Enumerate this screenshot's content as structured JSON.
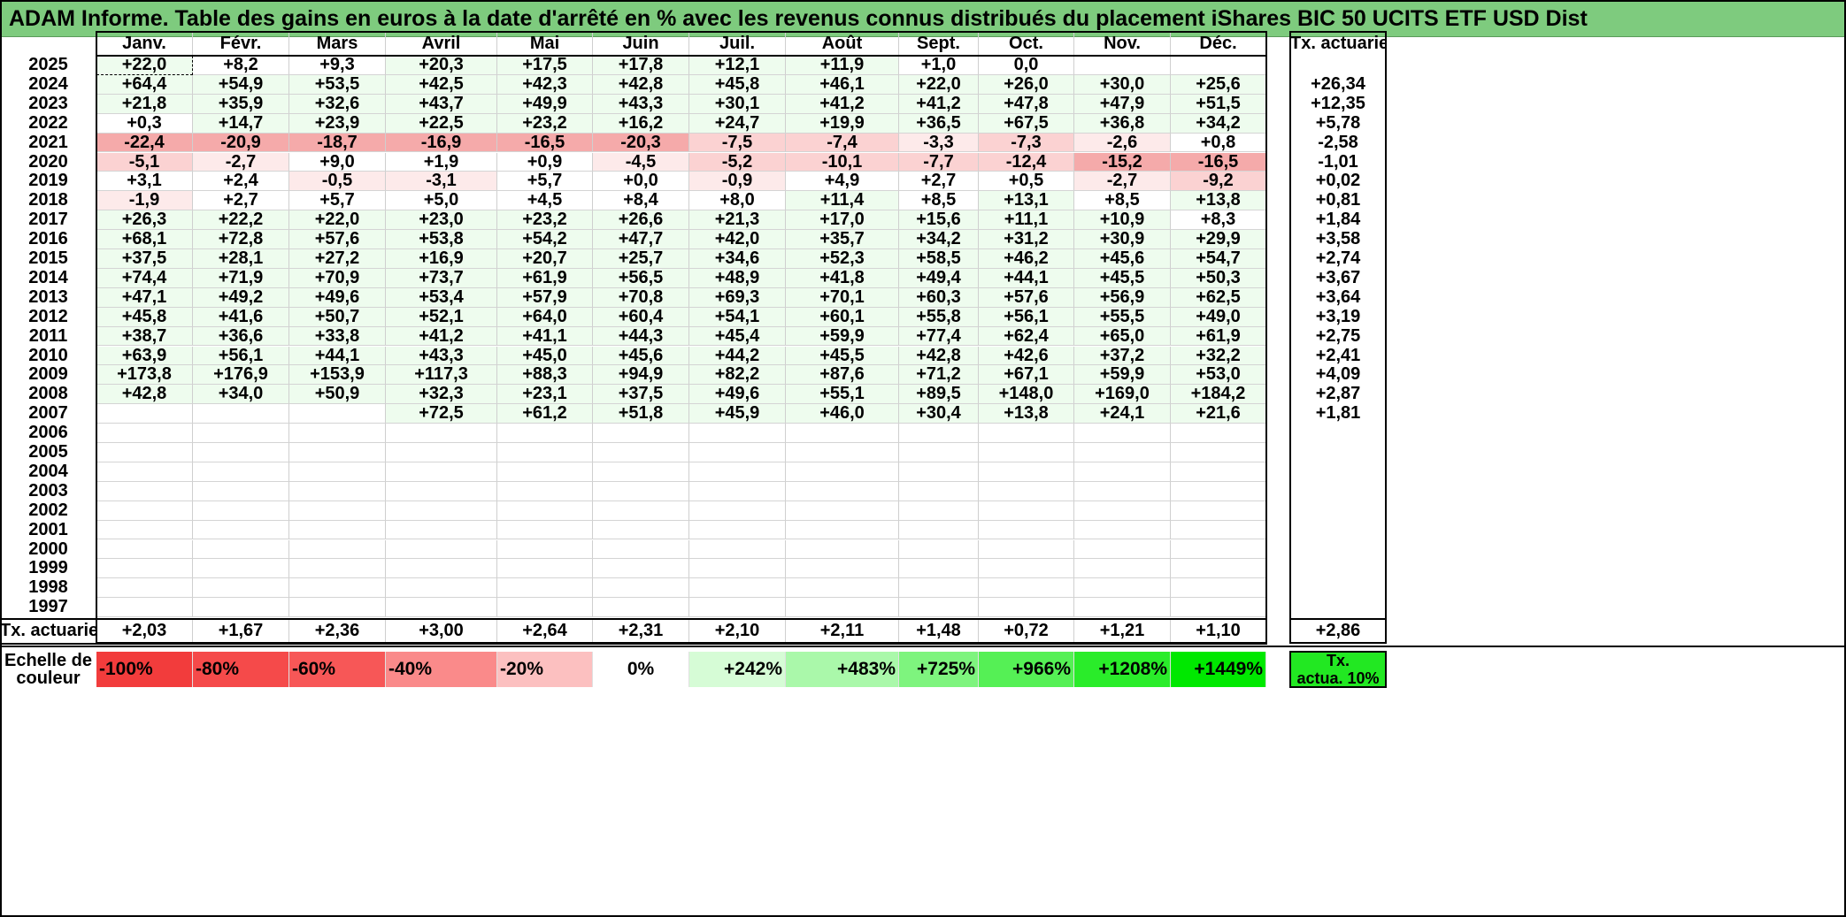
{
  "title": "ADAM Informe. Table des gains en euros à la date d'arrêté en % avec les revenus connus distribués du placement iShares BIC 50 UCITS ETF USD Dist",
  "months": [
    "Janv.",
    "Févr.",
    "Mars",
    "Avril",
    "Mai",
    "Juin",
    "Juil.",
    "Août",
    "Sept.",
    "Oct.",
    "Nov.",
    "Déc."
  ],
  "annual_header": "Tx. actuariel",
  "rows": [
    {
      "year": "2025",
      "values": [
        "+22,0",
        "+8,2",
        "+9,3",
        "+20,3",
        "+17,5",
        "+17,8",
        "+12,1",
        "+11,9",
        "+1,0",
        "0,0",
        "",
        ""
      ],
      "rate": ""
    },
    {
      "year": "2024",
      "values": [
        "+64,4",
        "+54,9",
        "+53,5",
        "+42,5",
        "+42,3",
        "+42,8",
        "+45,8",
        "+46,1",
        "+22,0",
        "+26,0",
        "+30,0",
        "+25,6"
      ],
      "rate": "+26,34"
    },
    {
      "year": "2023",
      "values": [
        "+21,8",
        "+35,9",
        "+32,6",
        "+43,7",
        "+49,9",
        "+43,3",
        "+30,1",
        "+41,2",
        "+41,2",
        "+47,8",
        "+47,9",
        "+51,5"
      ],
      "rate": "+12,35"
    },
    {
      "year": "2022",
      "values": [
        "+0,3",
        "+14,7",
        "+23,9",
        "+22,5",
        "+23,2",
        "+16,2",
        "+24,7",
        "+19,9",
        "+36,5",
        "+67,5",
        "+36,8",
        "+34,2"
      ],
      "rate": "+5,78"
    },
    {
      "year": "2021",
      "values": [
        "-22,4",
        "-20,9",
        "-18,7",
        "-16,9",
        "-16,5",
        "-20,3",
        "-7,5",
        "-7,4",
        "-3,3",
        "-7,3",
        "-2,6",
        "+0,8"
      ],
      "rate": "-2,58"
    },
    {
      "year": "2020",
      "values": [
        "-5,1",
        "-2,7",
        "+9,0",
        "+1,9",
        "+0,9",
        "-4,5",
        "-5,2",
        "-10,1",
        "-7,7",
        "-12,4",
        "-15,2",
        "-16,5"
      ],
      "rate": "-1,01"
    },
    {
      "year": "2019",
      "values": [
        "+3,1",
        "+2,4",
        "-0,5",
        "-3,1",
        "+5,7",
        "+0,0",
        "-0,9",
        "+4,9",
        "+2,7",
        "+0,5",
        "-2,7",
        "-9,2"
      ],
      "rate": "+0,02"
    },
    {
      "year": "2018",
      "values": [
        "-1,9",
        "+2,7",
        "+5,7",
        "+5,0",
        "+4,5",
        "+8,4",
        "+8,0",
        "+11,4",
        "+8,5",
        "+13,1",
        "+8,5",
        "+13,8"
      ],
      "rate": "+0,81"
    },
    {
      "year": "2017",
      "values": [
        "+26,3",
        "+22,2",
        "+22,0",
        "+23,0",
        "+23,2",
        "+26,6",
        "+21,3",
        "+17,0",
        "+15,6",
        "+11,1",
        "+10,9",
        "+8,3"
      ],
      "rate": "+1,84"
    },
    {
      "year": "2016",
      "values": [
        "+68,1",
        "+72,8",
        "+57,6",
        "+53,8",
        "+54,2",
        "+47,7",
        "+42,0",
        "+35,7",
        "+34,2",
        "+31,2",
        "+30,9",
        "+29,9"
      ],
      "rate": "+3,58"
    },
    {
      "year": "2015",
      "values": [
        "+37,5",
        "+28,1",
        "+27,2",
        "+16,9",
        "+20,7",
        "+25,7",
        "+34,6",
        "+52,3",
        "+58,5",
        "+46,2",
        "+45,6",
        "+54,7"
      ],
      "rate": "+2,74"
    },
    {
      "year": "2014",
      "values": [
        "+74,4",
        "+71,9",
        "+70,9",
        "+73,7",
        "+61,9",
        "+56,5",
        "+48,9",
        "+41,8",
        "+49,4",
        "+44,1",
        "+45,5",
        "+50,3"
      ],
      "rate": "+3,67"
    },
    {
      "year": "2013",
      "values": [
        "+47,1",
        "+49,2",
        "+49,6",
        "+53,4",
        "+57,9",
        "+70,8",
        "+69,3",
        "+70,1",
        "+60,3",
        "+57,6",
        "+56,9",
        "+62,5"
      ],
      "rate": "+3,64"
    },
    {
      "year": "2012",
      "values": [
        "+45,8",
        "+41,6",
        "+50,7",
        "+52,1",
        "+64,0",
        "+60,4",
        "+54,1",
        "+60,1",
        "+55,8",
        "+56,1",
        "+55,5",
        "+49,0"
      ],
      "rate": "+3,19"
    },
    {
      "year": "2011",
      "values": [
        "+38,7",
        "+36,6",
        "+33,8",
        "+41,2",
        "+41,1",
        "+44,3",
        "+45,4",
        "+59,9",
        "+77,4",
        "+62,4",
        "+65,0",
        "+61,9"
      ],
      "rate": "+2,75"
    },
    {
      "year": "2010",
      "values": [
        "+63,9",
        "+56,1",
        "+44,1",
        "+43,3",
        "+45,0",
        "+45,6",
        "+44,2",
        "+45,5",
        "+42,8",
        "+42,6",
        "+37,2",
        "+32,2"
      ],
      "rate": "+2,41"
    },
    {
      "year": "2009",
      "values": [
        "+173,8",
        "+176,9",
        "+153,9",
        "+117,3",
        "+88,3",
        "+94,9",
        "+82,2",
        "+87,6",
        "+71,2",
        "+67,1",
        "+59,9",
        "+53,0"
      ],
      "rate": "+4,09"
    },
    {
      "year": "2008",
      "values": [
        "+42,8",
        "+34,0",
        "+50,9",
        "+32,3",
        "+23,1",
        "+37,5",
        "+49,6",
        "+55,1",
        "+89,5",
        "+148,0",
        "+169,0",
        "+184,2"
      ],
      "rate": "+2,87"
    },
    {
      "year": "2007",
      "values": [
        "",
        "",
        "",
        "+72,5",
        "+61,2",
        "+51,8",
        "+45,9",
        "+46,0",
        "+30,4",
        "+13,8",
        "+24,1",
        "+21,6"
      ],
      "rate": "+1,81"
    },
    {
      "year": "2006",
      "values": [
        "",
        "",
        "",
        "",
        "",
        "",
        "",
        "",
        "",
        "",
        "",
        ""
      ],
      "rate": ""
    },
    {
      "year": "2005",
      "values": [
        "",
        "",
        "",
        "",
        "",
        "",
        "",
        "",
        "",
        "",
        "",
        ""
      ],
      "rate": ""
    },
    {
      "year": "2004",
      "values": [
        "",
        "",
        "",
        "",
        "",
        "",
        "",
        "",
        "",
        "",
        "",
        ""
      ],
      "rate": ""
    },
    {
      "year": "2003",
      "values": [
        "",
        "",
        "",
        "",
        "",
        "",
        "",
        "",
        "",
        "",
        "",
        ""
      ],
      "rate": ""
    },
    {
      "year": "2002",
      "values": [
        "",
        "",
        "",
        "",
        "",
        "",
        "",
        "",
        "",
        "",
        "",
        ""
      ],
      "rate": ""
    },
    {
      "year": "2001",
      "values": [
        "",
        "",
        "",
        "",
        "",
        "",
        "",
        "",
        "",
        "",
        "",
        ""
      ],
      "rate": ""
    },
    {
      "year": "2000",
      "values": [
        "",
        "",
        "",
        "",
        "",
        "",
        "",
        "",
        "",
        "",
        "",
        ""
      ],
      "rate": ""
    },
    {
      "year": "1999",
      "values": [
        "",
        "",
        "",
        "",
        "",
        "",
        "",
        "",
        "",
        "",
        "",
        ""
      ],
      "rate": ""
    },
    {
      "year": "1998",
      "values": [
        "",
        "",
        "",
        "",
        "",
        "",
        "",
        "",
        "",
        "",
        "",
        ""
      ],
      "rate": ""
    },
    {
      "year": "1997",
      "values": [
        "",
        "",
        "",
        "",
        "",
        "",
        "",
        "",
        "",
        "",
        "",
        ""
      ],
      "rate": ""
    }
  ],
  "footer": {
    "label": "Tx. actuariel",
    "values": [
      "+2,03",
      "+1,67",
      "+2,36",
      "+3,00",
      "+2,64",
      "+2,31",
      "+2,10",
      "+2,11",
      "+1,48",
      "+0,72",
      "+1,21",
      "+1,10"
    ],
    "overall": "+2,86"
  },
  "scale": {
    "label_line1": "Echelle de",
    "label_line2": "couleur",
    "items": [
      {
        "label": "-100%",
        "color": "#f23c3c",
        "align": "left"
      },
      {
        "label": "-80%",
        "color": "#f54a4a",
        "align": "left"
      },
      {
        "label": "-60%",
        "color": "#f75757",
        "align": "left"
      },
      {
        "label": "-40%",
        "color": "#fa8a8a",
        "align": "left"
      },
      {
        "label": "-20%",
        "color": "#fcc0c0",
        "align": "left"
      },
      {
        "label": "0%",
        "color": "#ffffff",
        "align": "center"
      },
      {
        "label": "+242%",
        "color": "#d6fcd6",
        "align": "right"
      },
      {
        "label": "+483%",
        "color": "#aaf8aa",
        "align": "right"
      },
      {
        "label": "+725%",
        "color": "#7ef47e",
        "align": "right"
      },
      {
        "label": "+966%",
        "color": "#55f055",
        "align": "right"
      },
      {
        "label": "+1208%",
        "color": "#2aec2a",
        "align": "right"
      },
      {
        "label": "+1449%",
        "color": "#00e800",
        "align": "right"
      }
    ],
    "rate_line1": "Tx.",
    "rate_line2": "actua. 10%",
    "rate_color": "#22e822"
  },
  "colors": {
    "title_bg": "#7ecb7e",
    "positive_light": "#eefcee",
    "negative_strong": "#f5aaaa",
    "negative_mid": "#fbd2d2",
    "negative_light": "#fdeaea"
  }
}
